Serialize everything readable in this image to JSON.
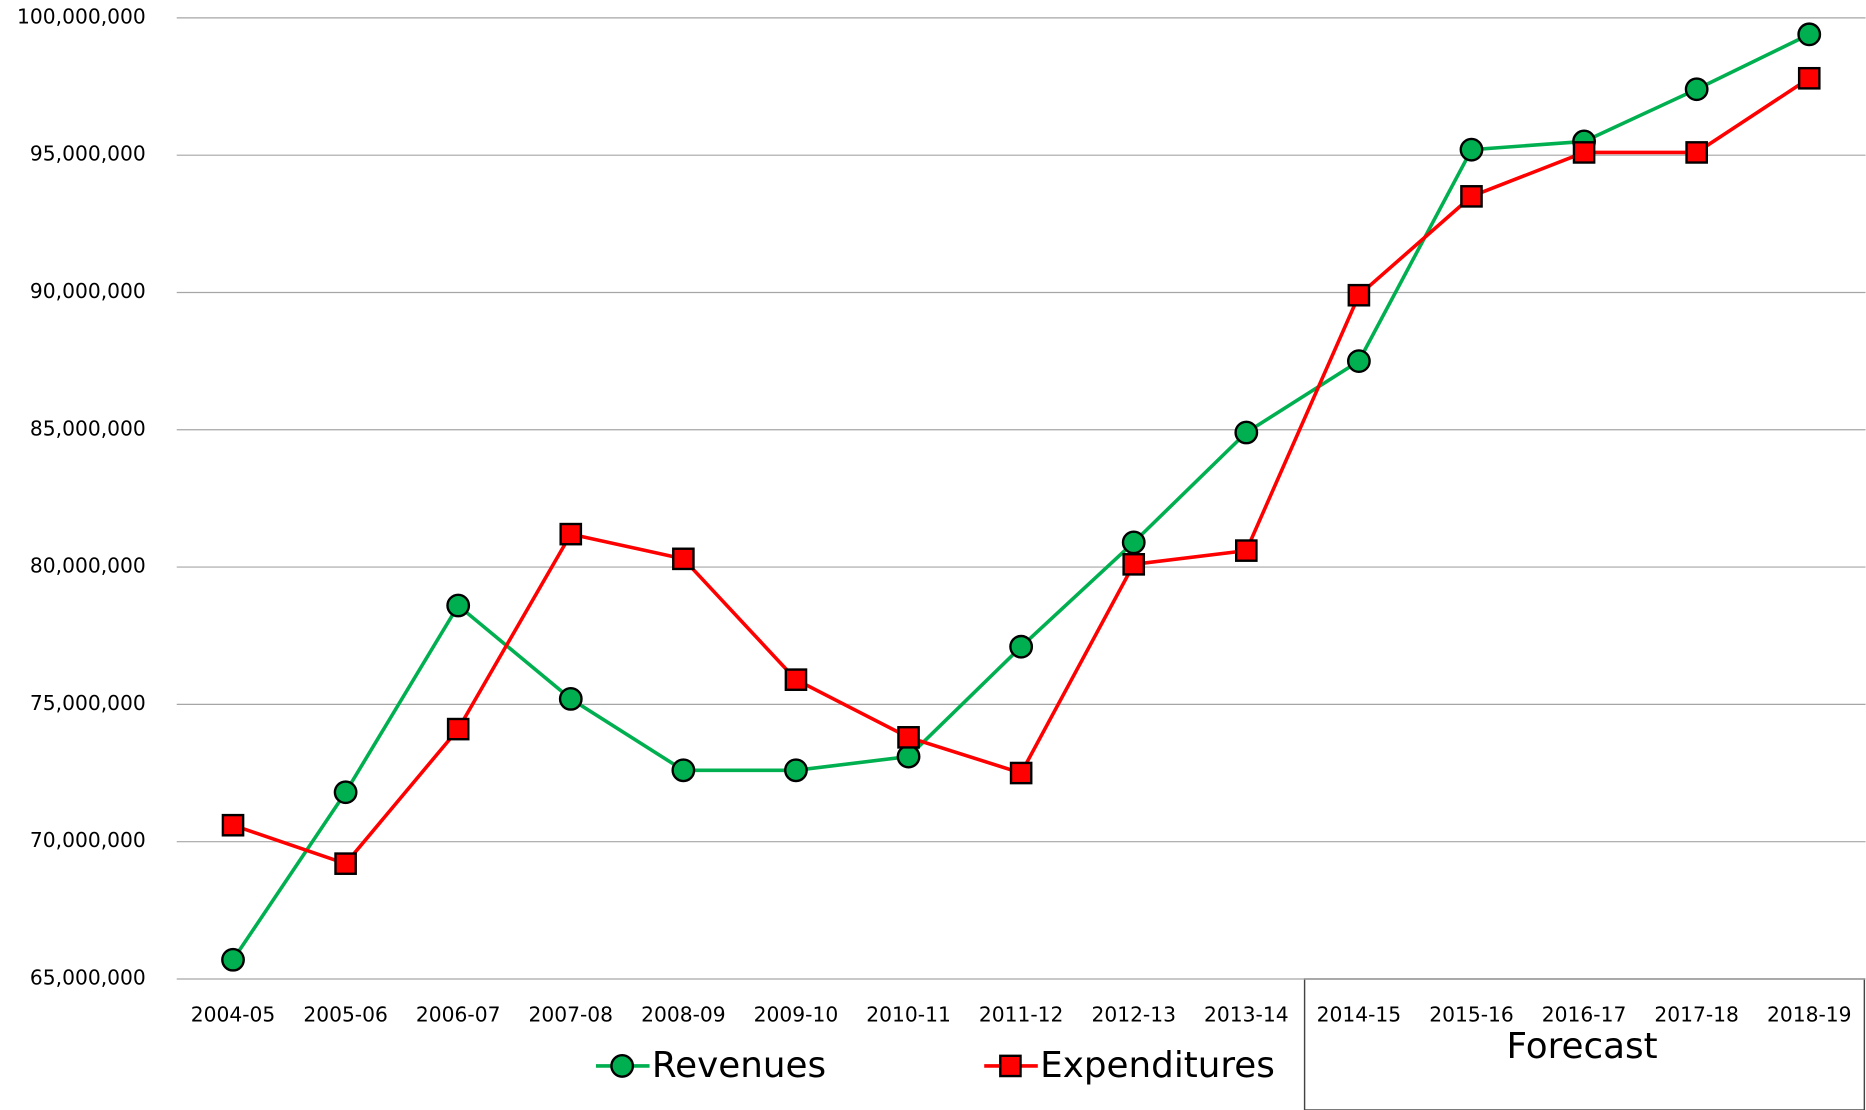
{
  "chart_data": {
    "type": "line",
    "categories": [
      "2004-05",
      "2005-06",
      "2006-07",
      "2007-08",
      "2008-09",
      "2009-10",
      "2010-11",
      "2011-12",
      "2012-13",
      "2013-14",
      "2014-15",
      "2015-16",
      "2016-17",
      "2017-18",
      "2018-19"
    ],
    "series": [
      {
        "name": "Revenues",
        "color": "#00b050",
        "marker_color": "#00b050",
        "marker": "circle",
        "values": [
          65700000,
          71800000,
          78600000,
          75200000,
          72600000,
          72600000,
          73100000,
          77100000,
          80900000,
          84900000,
          87500000,
          95200000,
          95500000,
          97400000,
          99400000
        ]
      },
      {
        "name": "Expenditures",
        "color": "#ff0000",
        "marker_color": "#ff0000",
        "marker": "square",
        "values": [
          70600000,
          69200000,
          74100000,
          81200000,
          80300000,
          75900000,
          73800000,
          72500000,
          80100000,
          80600000,
          89900000,
          93500000,
          95100000,
          95100000,
          97800000
        ]
      }
    ],
    "ylim": [
      65000000,
      100000000
    ],
    "yticks": [
      {
        "value": 65000000,
        "label": "65,000,000"
      },
      {
        "value": 70000000,
        "label": "70,000,000"
      },
      {
        "value": 75000000,
        "label": "75,000,000"
      },
      {
        "value": 80000000,
        "label": "80,000,000"
      },
      {
        "value": 85000000,
        "label": "85,000,000"
      },
      {
        "value": 90000000,
        "label": "90,000,000"
      },
      {
        "value": 95000000,
        "label": "95,000,000"
      },
      {
        "value": 100000000,
        "label": "100,000,000"
      }
    ],
    "grid": true,
    "legend": "bottom",
    "annotation": "Forecast"
  }
}
